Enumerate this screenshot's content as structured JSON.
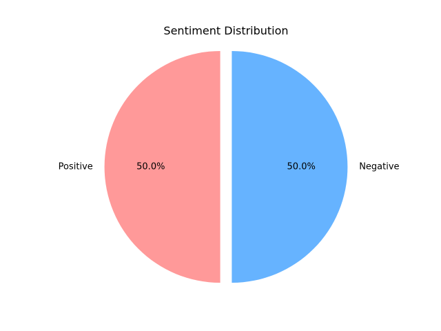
{
  "chart_data": {
    "type": "pie",
    "title": "Sentiment Distribution",
    "slices": [
      {
        "label": "Positive",
        "value": 50.0,
        "percent_label": "50.0%",
        "color": "#ff9999",
        "exploded": true
      },
      {
        "label": "Negative",
        "value": 50.0,
        "percent_label": "50.0%",
        "color": "#66b3ff",
        "exploded": true
      }
    ],
    "start_angle_deg": 90,
    "direction": "counterclockwise",
    "legend": "none"
  }
}
